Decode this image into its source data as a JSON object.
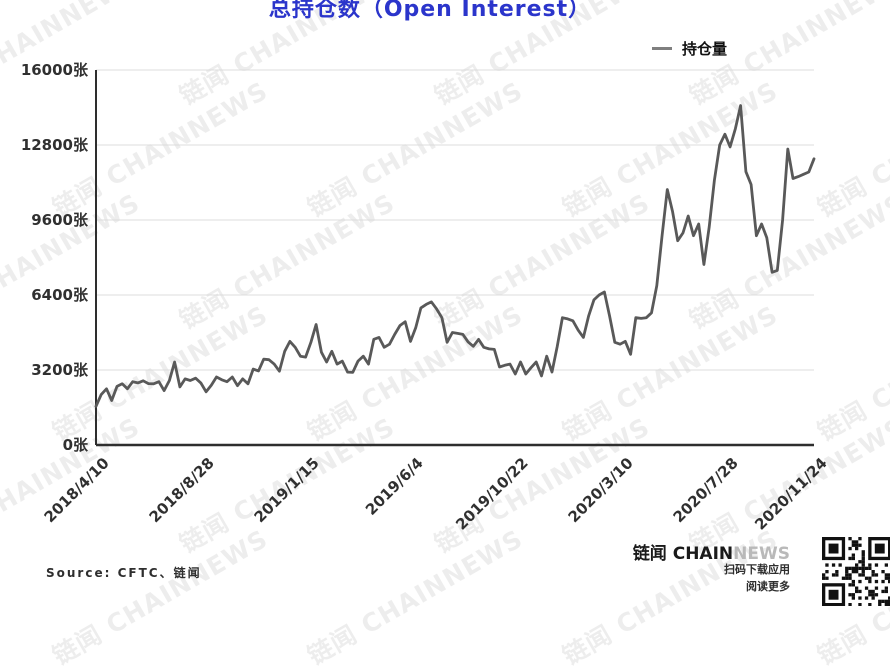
{
  "title": "总持仓数（Open Interest）",
  "legend": {
    "label": "持仓量"
  },
  "source": "Source: CFTC、链闻",
  "watermark": "链闻 CHAINNEWS",
  "footer": {
    "brand_dark": "链闻 CHAIN",
    "brand_light": "NEWS",
    "tagline1": "扫码下载应用",
    "tagline2": "阅读更多"
  },
  "colors": {
    "title": "#2b35cb",
    "line": "#595959",
    "grid": "#dcdcdc",
    "axis": "#2e2e2e",
    "tick_text": "#303030",
    "legend_dash": "#7f7f7f",
    "brand_light": "#b9b9b9"
  },
  "chart_data": {
    "type": "line",
    "title": "总持仓数（Open Interest）",
    "series_name": "持仓量",
    "unit": "张",
    "grid": true,
    "legend_position": "top-right",
    "ylim": [
      0,
      16000
    ],
    "y_tick_values": [
      0,
      3200,
      6400,
      9600,
      12800,
      16000
    ],
    "y_tick_labels": [
      "0张",
      "3200张",
      "6400张",
      "9600张",
      "12800张",
      "16000张"
    ],
    "x_tick_labels": [
      "2018/4/10",
      "2018/8/28",
      "2019/1/15",
      "2019/6/4",
      "2019/10/22",
      "2020/3/10",
      "2020/7/28",
      "2020/11/24"
    ],
    "x_tick_indices": [
      0,
      20,
      40,
      60,
      80,
      100,
      120,
      137
    ],
    "values": [
      1650,
      2150,
      2400,
      1900,
      2500,
      2610,
      2400,
      2700,
      2650,
      2740,
      2620,
      2610,
      2700,
      2320,
      2750,
      3540,
      2480,
      2820,
      2750,
      2850,
      2650,
      2270,
      2550,
      2900,
      2780,
      2700,
      2900,
      2530,
      2820,
      2610,
      3240,
      3160,
      3660,
      3640,
      3450,
      3150,
      4000,
      4420,
      4170,
      3790,
      3750,
      4380,
      5140,
      3960,
      3540,
      4000,
      3450,
      3580,
      3110,
      3100,
      3580,
      3790,
      3450,
      4510,
      4590,
      4170,
      4300,
      4720,
      5100,
      5260,
      4420,
      5000,
      5850,
      6000,
      6105,
      5800,
      5430,
      4380,
      4800,
      4760,
      4720,
      4400,
      4210,
      4505,
      4170,
      4100,
      4080,
      3330,
      3400,
      3450,
      3030,
      3540,
      3030,
      3300,
      3540,
      2950,
      3790,
      3115,
      4200,
      5430,
      5380,
      5300,
      4900,
      4590,
      5500,
      6190,
      6400,
      6530,
      5500,
      4380,
      4300,
      4420,
      3870,
      5430,
      5400,
      5430,
      5640,
      6800,
      8900,
      10900,
      9970,
      8715,
      9050,
      9770,
      8930,
      9430,
      7700,
      9300,
      11300,
      12800,
      13260,
      12720,
      13500,
      14480,
      11660,
      11115,
      8930,
      9430,
      8840,
      7370,
      7450,
      9600,
      12630,
      11370,
      11450,
      11550,
      11650,
      12210
    ]
  }
}
